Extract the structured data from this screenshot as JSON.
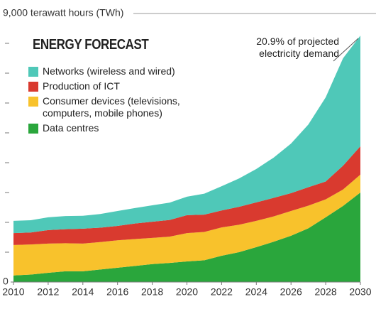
{
  "chart_data": {
    "type": "stacked_area",
    "title": "ENERGY FORECAST",
    "annotation": "20.9% of projected electricity demand",
    "x": [
      2010,
      2011,
      2012,
      2013,
      2014,
      2015,
      2016,
      2017,
      2018,
      2019,
      2020,
      2021,
      2022,
      2023,
      2024,
      2025,
      2026,
      2027,
      2028,
      2029,
      2030
    ],
    "xlim": [
      2010,
      2030
    ],
    "xticks": [
      2010,
      2012,
      2014,
      2016,
      2018,
      2020,
      2022,
      2024,
      2026,
      2028,
      2030
    ],
    "ylim": [
      0,
      9000
    ],
    "yticks": [
      0,
      {
        "value": 9000,
        "label": "9,000 terawatt hours (TWh)"
      }
    ],
    "minor_yticks": [
      1000,
      2000,
      3000,
      4000,
      5000,
      6000,
      7000,
      8000
    ],
    "series": [
      {
        "name": "Networks (wireless and wired)",
        "color": "#4fc8b8",
        "values": [
          410,
          410,
          430,
          440,
          430,
          460,
          500,
          520,
          550,
          580,
          620,
          700,
          810,
          950,
          1120,
          1350,
          1660,
          2100,
          2820,
          3600,
          3710
        ]
      },
      {
        "name": "Production of ICT",
        "color": "#d93a2f",
        "values": [
          400,
          400,
          450,
          470,
          500,
          480,
          480,
          520,
          540,
          560,
          600,
          580,
          570,
          600,
          620,
          620,
          600,
          620,
          600,
          800,
          950
        ]
      },
      {
        "name": "Consumer devices (televisions, computers, mobile phones)",
        "color": "#f8c22c",
        "values": [
          1020,
          1010,
          980,
          940,
          930,
          920,
          920,
          900,
          880,
          880,
          950,
          950,
          950,
          920,
          880,
          850,
          830,
          760,
          600,
          550,
          600
        ]
      },
      {
        "name": "Data centres",
        "color": "#2aa63c",
        "values": [
          220,
          250,
          310,
          360,
          360,
          420,
          480,
          540,
          600,
          640,
          690,
          730,
          880,
          1000,
          1170,
          1350,
          1550,
          1800,
          2170,
          2550,
          3000
        ]
      }
    ]
  }
}
